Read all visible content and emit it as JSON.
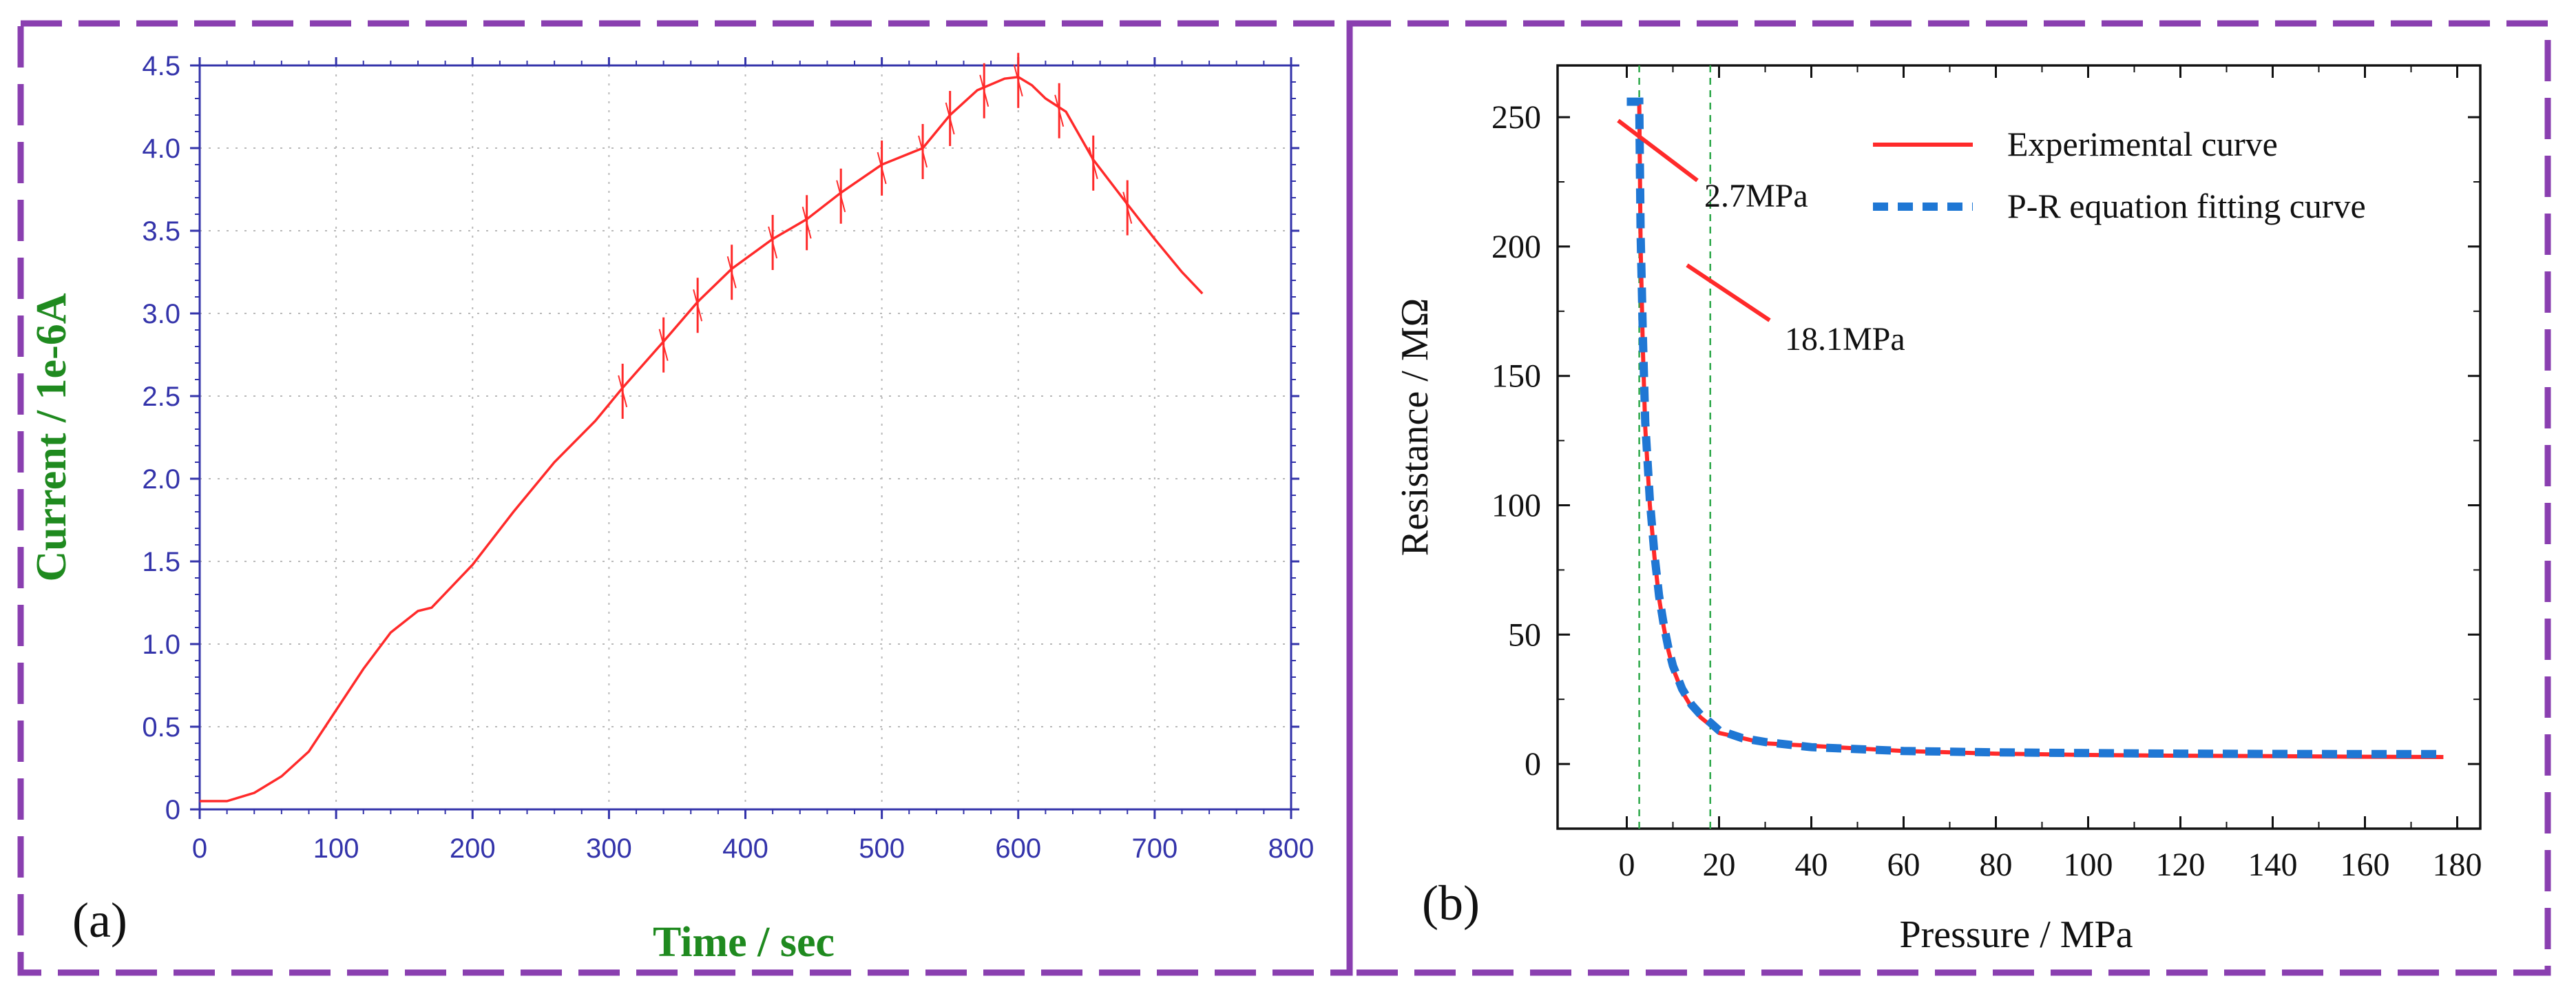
{
  "panels": {
    "a": {
      "label": "(a)"
    },
    "b": {
      "label": "(b)"
    }
  },
  "colors": {
    "frame": "#8a3fb0",
    "axis_blue": "#3333aa",
    "axis_label_green": "#1f8a1f",
    "red_curve": "#ff2a2a",
    "blue_fit": "#1f77d4",
    "guide_green": "#2ea84a"
  },
  "chart_data": [
    {
      "id": "panel-a",
      "type": "line",
      "title": "",
      "xlabel": "Time / sec",
      "ylabel": "Current / 1e-6A",
      "xlim": [
        0,
        800
      ],
      "ylim": [
        0,
        4.5
      ],
      "x_ticks": [
        "0",
        "100",
        "200",
        "300",
        "400",
        "500",
        "600",
        "700",
        "800"
      ],
      "y_ticks": [
        "0",
        "0.5",
        "1.0",
        "1.5",
        "2.0",
        "2.5",
        "3.0",
        "3.5",
        "4.0",
        "4.5"
      ],
      "grid": true,
      "series": [
        {
          "name": "Current",
          "x": [
            0,
            20,
            40,
            60,
            80,
            100,
            120,
            140,
            160,
            170,
            200,
            230,
            260,
            290,
            310,
            340,
            365,
            390,
            420,
            445,
            470,
            500,
            530,
            550,
            570,
            590,
            600,
            610,
            620,
            635,
            655,
            680,
            700,
            720,
            735
          ],
          "y": [
            0.05,
            0.05,
            0.1,
            0.2,
            0.35,
            0.6,
            0.85,
            1.07,
            1.2,
            1.22,
            1.48,
            1.8,
            2.1,
            2.35,
            2.55,
            2.83,
            3.07,
            3.27,
            3.45,
            3.57,
            3.73,
            3.9,
            4.0,
            4.2,
            4.35,
            4.42,
            4.43,
            4.38,
            4.3,
            4.22,
            3.93,
            3.66,
            3.45,
            3.25,
            3.12
          ]
        }
      ],
      "spike_x": [
        310,
        340,
        365,
        390,
        420,
        445,
        470,
        500,
        530,
        550,
        575,
        600,
        630,
        655,
        680
      ]
    },
    {
      "id": "panel-b",
      "type": "line",
      "title": "",
      "xlabel": "Pressure / MPa",
      "ylabel": "Resistance / MΩ",
      "xlim": [
        -15,
        185
      ],
      "ylim": [
        -25,
        270
      ],
      "x_ticks": [
        "0",
        "20",
        "40",
        "60",
        "80",
        "100",
        "120",
        "140",
        "160",
        "180"
      ],
      "y_ticks": [
        "0",
        "50",
        "100",
        "150",
        "200",
        "250"
      ],
      "grid": false,
      "series": [
        {
          "name": "Experimental curve",
          "x": [
            0,
            2.7,
            3.0,
            3.5,
            4,
            5,
            6,
            7,
            8,
            9,
            10,
            12,
            14,
            16,
            18.1,
            20,
            25,
            30,
            40,
            60,
            80,
            100,
            120,
            140,
            160,
            177
          ],
          "y": [
            256,
            256,
            200,
            160,
            130,
            100,
            80,
            64,
            53,
            44,
            37,
            28,
            22,
            18,
            15,
            12,
            10,
            8,
            7,
            5,
            4,
            3.5,
            3.2,
            3,
            2.8,
            2.7
          ]
        },
        {
          "name": "P-R equation fitting curve",
          "x": [
            0,
            2.7,
            3.0,
            3.5,
            4,
            5,
            6,
            7,
            8,
            9,
            10,
            12,
            14,
            16,
            18.1,
            20,
            25,
            30,
            40,
            60,
            80,
            100,
            120,
            140,
            160,
            177
          ],
          "y": [
            256,
            256,
            205,
            165,
            132,
            102,
            81,
            65,
            54,
            45,
            38,
            29,
            23,
            19,
            16,
            13,
            10,
            8.5,
            6.5,
            5,
            4.5,
            4.2,
            4,
            3.9,
            3.8,
            3.8
          ]
        }
      ],
      "guide_lines_x": [
        2.7,
        18.1
      ],
      "annotations": [
        "2.7MPa",
        "18.1MPa"
      ]
    }
  ]
}
